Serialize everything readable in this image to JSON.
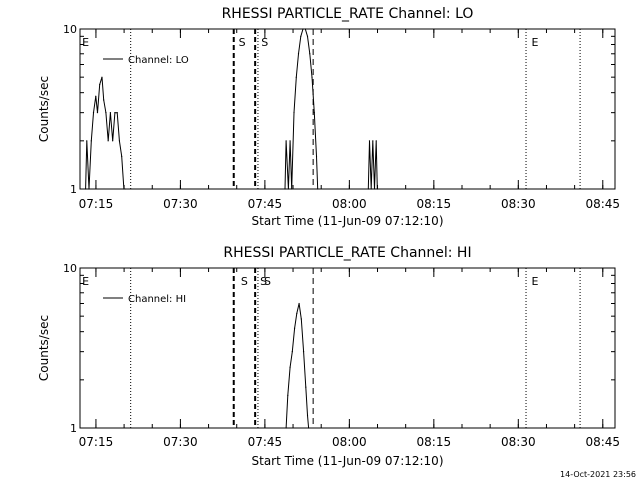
{
  "chart_data": [
    {
      "type": "line",
      "title": "RHESSI PARTICLE_RATE Channel: LO",
      "xlabel": "Start Time (11-Jun-09 07:12:10)",
      "ylabel": "Counts/sec",
      "yscale": "log",
      "ylim": [
        1,
        10
      ],
      "y_ticks": [
        "1",
        "10"
      ],
      "xlim_minutes": [
        0,
        95
      ],
      "x_ticks": [
        {
          "label": "07:15",
          "t": 2.83
        },
        {
          "label": "07:30",
          "t": 17.83
        },
        {
          "label": "07:45",
          "t": 32.83
        },
        {
          "label": "08:00",
          "t": 47.83
        },
        {
          "label": "08:15",
          "t": 62.83
        },
        {
          "label": "08:30",
          "t": 77.83
        },
        {
          "label": "08:45",
          "t": 92.83
        }
      ],
      "legend": "top-left",
      "series": [
        {
          "name": "Channel: LO",
          "x": [
            1.0,
            1.2,
            1.6,
            2.0,
            2.4,
            2.8,
            3.1,
            3.5,
            3.9,
            4.2,
            4.6,
            5.0,
            5.4,
            5.8,
            6.2,
            6.6,
            7.0,
            7.4,
            7.8,
            8.0,
            36.4,
            36.6,
            37.0,
            37.3,
            37.6,
            38.0,
            38.4,
            38.8,
            39.2,
            39.6,
            40.0,
            40.4,
            40.8,
            41.2,
            41.6,
            42.0,
            42.2,
            51.2,
            51.4,
            51.7,
            52.0,
            52.3,
            52.6,
            52.8
          ],
          "y": [
            1,
            2,
            1,
            2,
            3,
            3.8,
            3,
            4.5,
            5,
            3.6,
            3,
            2,
            3,
            2,
            3,
            3,
            2,
            1.6,
            1,
            1,
            1,
            2,
            1,
            2,
            1,
            3,
            5,
            7,
            9,
            10,
            10,
            9,
            7,
            5,
            3,
            1.6,
            1,
            1,
            2,
            1,
            2,
            1,
            2,
            1
          ]
        }
      ],
      "annotations": [
        {
          "label": "E",
          "t": 0.2
        },
        {
          "label": "S",
          "t": 28.0
        },
        {
          "label": "S",
          "t": 32.0
        },
        {
          "label": "E",
          "t": 80.0
        }
      ],
      "vlines": [
        {
          "t": 9.0,
          "style": "dotted"
        },
        {
          "t": 27.3,
          "style": "dashed-bold"
        },
        {
          "t": 31.1,
          "style": "dashed-bold"
        },
        {
          "t": 31.6,
          "style": "dotted"
        },
        {
          "t": 41.4,
          "style": "dashed"
        },
        {
          "t": 79.2,
          "style": "dotted"
        },
        {
          "t": 88.8,
          "style": "dotted"
        }
      ]
    },
    {
      "type": "line",
      "title": "RHESSI PARTICLE_RATE Channel: HI",
      "xlabel": "Start Time (11-Jun-09 07:12:10)",
      "ylabel": "Counts/sec",
      "yscale": "log",
      "ylim": [
        1,
        10
      ],
      "y_ticks": [
        "1",
        "10"
      ],
      "xlim_minutes": [
        0,
        95
      ],
      "x_ticks": [
        {
          "label": "07:15",
          "t": 2.83
        },
        {
          "label": "07:30",
          "t": 17.83
        },
        {
          "label": "07:45",
          "t": 32.83
        },
        {
          "label": "08:00",
          "t": 47.83
        },
        {
          "label": "08:15",
          "t": 62.83
        },
        {
          "label": "08:30",
          "t": 77.83
        },
        {
          "label": "08:45",
          "t": 92.83
        }
      ],
      "legend": "top-left",
      "series": [
        {
          "name": "Channel: HI",
          "x": [
            36.6,
            36.9,
            37.3,
            37.7,
            38.1,
            38.5,
            38.9,
            39.3,
            39.7,
            40.1,
            40.4,
            40.6
          ],
          "y": [
            1,
            1.6,
            2.4,
            3,
            4.2,
            5.2,
            6,
            4.8,
            3,
            1.8,
            1.2,
            1
          ]
        }
      ],
      "annotations": [
        {
          "label": "E",
          "t": 0.2
        },
        {
          "label": "S",
          "t": 28.4
        },
        {
          "label": "S",
          "t": 31.8
        },
        {
          "label": "S",
          "t": 32.5
        },
        {
          "label": "E",
          "t": 80.0
        }
      ],
      "vlines": [
        {
          "t": 9.0,
          "style": "dotted"
        },
        {
          "t": 27.3,
          "style": "dashed-bold"
        },
        {
          "t": 31.1,
          "style": "dashed-bold"
        },
        {
          "t": 31.6,
          "style": "dotted"
        },
        {
          "t": 41.4,
          "style": "dashed"
        },
        {
          "t": 79.2,
          "style": "dotted"
        },
        {
          "t": 88.8,
          "style": "dotted"
        }
      ]
    }
  ],
  "footer": {
    "timestamp": "14-Oct-2021 23:56"
  }
}
